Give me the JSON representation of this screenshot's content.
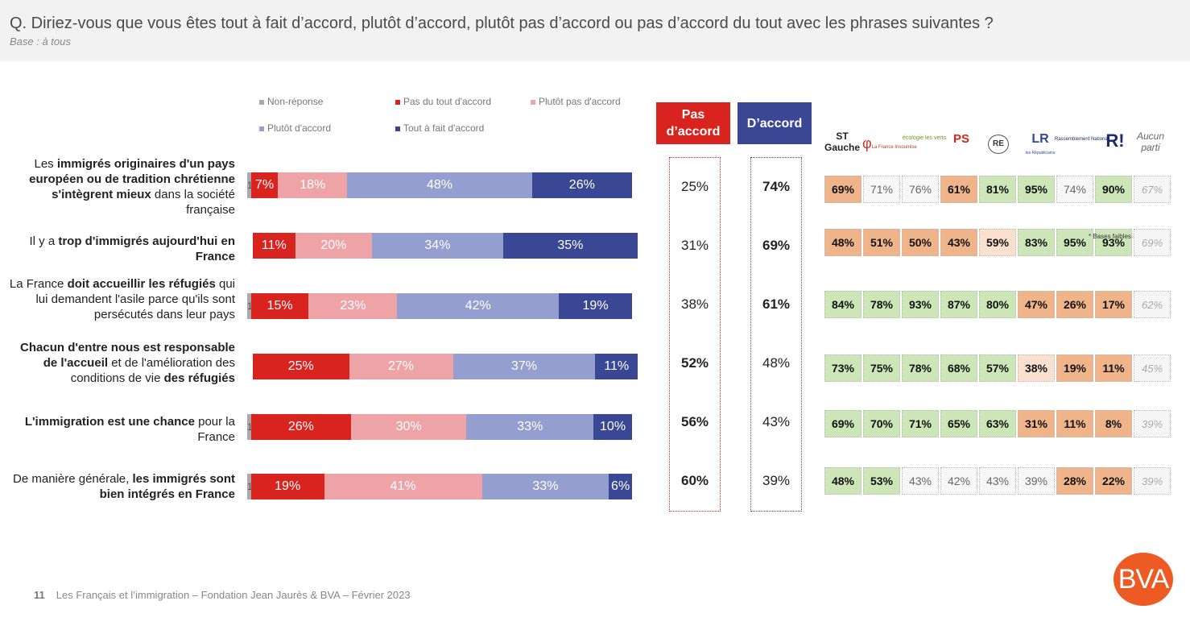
{
  "header": {
    "question": "Q. Diriez-vous que vous êtes tout à fait d’accord, plutôt d’accord, plutôt pas d’accord ou pas d’accord du tout avec les phrases suivantes ?",
    "base": "Base : à tous"
  },
  "legend": {
    "non_reponse": "Non-réponse",
    "pas_du_tout": "Pas du tout d'accord",
    "plutot_pas": "Plutôt pas d'accord",
    "plutot": "Plutôt d'accord",
    "tout_a_fait": "Tout à fait d'accord"
  },
  "columns": {
    "pas_daccord": "Pas d’accord",
    "daccord": "D’accord"
  },
  "parties": {
    "st_gauche": "ST Gauche",
    "lfi": "La France Insoumise",
    "eelv": "écologie les verts",
    "ps": "PS",
    "re": "RE",
    "lr": "LR",
    "lr_sub": "les Républicains",
    "rn": "Rassemblement National",
    "rec": "R!",
    "aucun": "Aucun parti",
    "note": "* Bases faibles"
  },
  "rows": [
    {
      "label": "Les immigrés originaires d'un pays européen ou de tradition chrétienne s'intègrent mieux dans la société française"
    },
    {
      "label": "Il y a trop d'immigrés aujourd'hui en France"
    },
    {
      "label": "La France doit accueillir les réfugiés qui lui demandent l'asile parce qu'ils sont persécutés dans leur pays"
    },
    {
      "label": "Chacun d'entre nous est responsable de l'accueil et de l'amélioration des conditions de vie des réfugiés"
    },
    {
      "label": "L'immigration est une chance pour la France"
    },
    {
      "label": "De manière générale, les immigrés sont bien intégrés en France"
    }
  ],
  "chart_data": {
    "type": "bar",
    "orientation": "horizontal-stacked",
    "categories": [
      "Les immigrés originaires d'un pays européen ou de tradition chrétienne s'intègrent mieux dans la société française",
      "Il y a trop d'immigrés aujourd'hui en France",
      "La France doit accueillir les réfugiés qui lui demandent l'asile parce qu'ils sont persécutés dans leur pays",
      "Chacun d'entre nous est responsable de l'accueil et de l'amélioration des conditions de vie des réfugiés",
      "L'immigration est une chance pour la France",
      "De manière générale, les immigrés sont bien intégrés en France"
    ],
    "series": [
      {
        "name": "Non-réponse",
        "color": "#aaaaaa",
        "values": [
          1,
          0,
          1,
          0,
          1,
          1
        ],
        "labels": [
          "1%",
          "",
          "1%",
          "",
          "1%",
          "1%"
        ]
      },
      {
        "name": "Pas du tout d'accord",
        "color": "#d8231f",
        "values": [
          7,
          11,
          15,
          25,
          26,
          19
        ],
        "labels": [
          "7%",
          "11%",
          "15%",
          "25%",
          "26%",
          "19%"
        ]
      },
      {
        "name": "Plutôt pas d'accord",
        "color": "#eea3a6",
        "values": [
          18,
          20,
          23,
          27,
          30,
          41
        ],
        "labels": [
          "18%",
          "20%",
          "23%",
          "27%",
          "30%",
          "41%"
        ]
      },
      {
        "name": "Plutôt d'accord",
        "color": "#959fcf",
        "values": [
          48,
          34,
          42,
          37,
          33,
          33
        ],
        "labels": [
          "48%",
          "34%",
          "42%",
          "37%",
          "33%",
          "33%"
        ]
      },
      {
        "name": "Tout à fait d'accord",
        "color": "#3a4795",
        "values": [
          26,
          35,
          19,
          11,
          10,
          6
        ],
        "labels": [
          "26%",
          "35%",
          "19%",
          "11%",
          "10%",
          "6%"
        ]
      }
    ],
    "totals": {
      "pas_daccord": [
        "25%",
        "31%",
        "38%",
        "52%",
        "56%",
        "60%"
      ],
      "daccord": [
        "74%",
        "69%",
        "61%",
        "48%",
        "43%",
        "39%"
      ],
      "bold": [
        "daccord",
        "daccord",
        "daccord",
        "pas_daccord",
        "pas_daccord",
        "pas_daccord"
      ]
    },
    "party_table": {
      "columns": [
        "ST Gauche",
        "LFI",
        "EELV",
        "PS",
        "RE",
        "LR",
        "RN",
        "R!",
        "Aucun parti"
      ],
      "rows": [
        [
          "69%",
          "71%",
          "76%",
          "61%",
          "81%",
          "95%",
          "74%",
          "90%",
          "67%"
        ],
        [
          "48%",
          "51%",
          "50%",
          "43%",
          "59%",
          "83%",
          "95%",
          "93%",
          "69%"
        ],
        [
          "84%",
          "78%",
          "93%",
          "87%",
          "80%",
          "47%",
          "26%",
          "17%",
          "62%"
        ],
        [
          "73%",
          "75%",
          "78%",
          "68%",
          "57%",
          "38%",
          "19%",
          "11%",
          "45%"
        ],
        [
          "69%",
          "70%",
          "71%",
          "65%",
          "63%",
          "31%",
          "11%",
          "8%",
          "39%"
        ],
        [
          "48%",
          "53%",
          "43%",
          "42%",
          "43%",
          "39%",
          "28%",
          "22%",
          "39%"
        ]
      ],
      "colors": [
        [
          "orange",
          "neutral",
          "neutral",
          "orange",
          "green",
          "green",
          "neutral",
          "green",
          "grey"
        ],
        [
          "orange",
          "orange",
          "orange",
          "orange",
          "lightorange",
          "green",
          "green",
          "green",
          "grey"
        ],
        [
          "green",
          "green",
          "green",
          "green",
          "green",
          "orange",
          "orange",
          "orange",
          "grey"
        ],
        [
          "green",
          "green",
          "green",
          "green",
          "green",
          "lightorange",
          "orange",
          "orange",
          "grey"
        ],
        [
          "green",
          "green",
          "green",
          "green",
          "green",
          "orange",
          "orange",
          "orange",
          "grey"
        ],
        [
          "green",
          "green",
          "neutral",
          "neutral",
          "neutral",
          "neutral",
          "orange",
          "orange",
          "grey"
        ]
      ],
      "bold": [
        [
          true,
          false,
          false,
          true,
          true,
          true,
          false,
          true,
          false
        ],
        [
          true,
          true,
          true,
          true,
          true,
          true,
          true,
          true,
          false
        ],
        [
          true,
          true,
          true,
          true,
          true,
          true,
          true,
          true,
          false
        ],
        [
          true,
          true,
          true,
          true,
          true,
          true,
          true,
          true,
          false
        ],
        [
          true,
          true,
          true,
          true,
          true,
          true,
          true,
          true,
          false
        ],
        [
          true,
          true,
          false,
          false,
          false,
          false,
          true,
          true,
          false
        ]
      ]
    }
  },
  "footer": {
    "page": "11",
    "text": "Les Français et l’immigration – Fondation Jean Jaurès & BVA – Février 2023"
  },
  "brand": {
    "logo": "BVA",
    "logo_color": "#ee5a24"
  }
}
